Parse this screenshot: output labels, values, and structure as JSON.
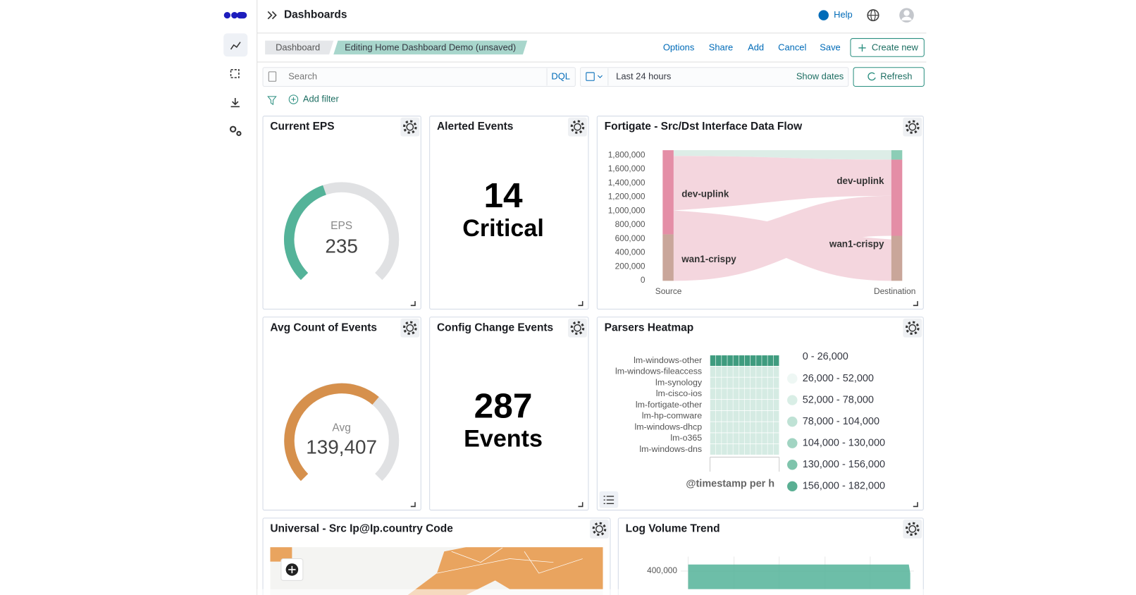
{
  "header": {
    "title": "Dashboards",
    "help": "Help"
  },
  "breadcrumbs": [
    "Dashboard",
    "Editing Home Dashboard Demo (unsaved)"
  ],
  "actions": [
    "Options",
    "Share",
    "Add",
    "Cancel",
    "Save",
    "Create new"
  ],
  "query": {
    "search": "Search",
    "language": "DQL",
    "time_range": "Last 24 hours",
    "show_dates": "Show dates",
    "refresh": "Refresh",
    "add_filter": "Add filter"
  },
  "panels": [
    {
      "title": "Current EPS",
      "label": "EPS",
      "value": "235"
    },
    {
      "title": "Alerted Events",
      "value": "14",
      "label": "Critical"
    },
    {
      "title": "Fortigate - Src/Dst Interface Data Flow",
      "yticks": [
        "1,800,000",
        "1,600,000",
        "1,400,000",
        "1,200,000",
        "1,000,000",
        "800,000",
        "600,000",
        "400,000",
        "200,000",
        "0"
      ],
      "nodes": [
        "dev-uplink",
        "wan1-crispy",
        "dev-uplink",
        "wan1-crispy"
      ],
      "x_labels": [
        "Source",
        "Destination"
      ]
    },
    {
      "title": "Avg Count of Events",
      "label": "Avg",
      "value": "139,407"
    },
    {
      "title": "Config Change Events",
      "value": "287",
      "label": "Events"
    },
    {
      "title": "Parsers Heatmap",
      "rows": [
        "lm-windows-other",
        "lm-windows-fileaccess",
        "lm-synology",
        "lm-cisco-ios",
        "lm-fortigate-other",
        "lm-hp-comware",
        "lm-windows-dhcp",
        "lm-o365",
        "lm-windows-dns"
      ],
      "x_label": "@timestamp per h",
      "legend": [
        "0 - 26,000",
        "26,000 - 52,000",
        "52,000 - 78,000",
        "78,000 - 104,000",
        "104,000 - 130,000",
        "130,000 - 156,000",
        "156,000 - 182,000"
      ]
    },
    {
      "title": "Universal - Src Ip@Ip.country Code"
    },
    {
      "title": "Log Volume Trend",
      "ytick": "400,000"
    }
  ]
}
